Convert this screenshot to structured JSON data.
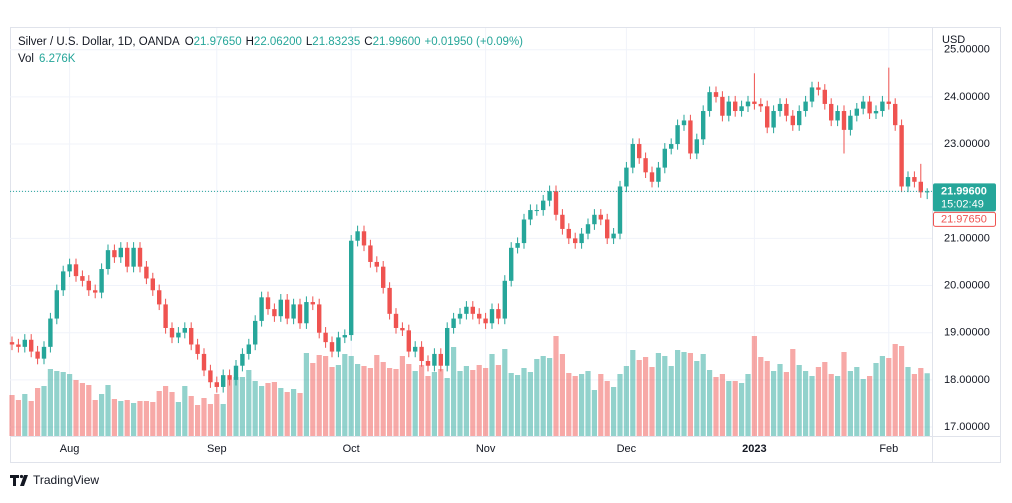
{
  "chart_data": {
    "type": "candlestick",
    "legend_header": {
      "symbol": "Silver / U.S. Dollar, 1D, OANDA",
      "items": [
        {
          "key": "O",
          "value": "21.97650"
        },
        {
          "key": "H",
          "value": "22.06200"
        },
        {
          "key": "L",
          "value": "21.83235"
        },
        {
          "key": "C",
          "value": "21.99600"
        }
      ],
      "change": "+0.01950 (+0.09%)",
      "volume_key": "Vol",
      "volume_value": "6.276K"
    },
    "currency": "USD",
    "price_labels": {
      "close": "21.99600",
      "countdown": "15:02:49",
      "open": "21.97650"
    },
    "branding": "TradingView",
    "up_color": "#26a69a",
    "down_color": "#ef5350",
    "ylim": [
      16.81,
      25.46
    ],
    "yticks": [
      {
        "value": 17,
        "label": "17.00000"
      },
      {
        "value": 18,
        "label": "18.00000"
      },
      {
        "value": 19,
        "label": "19.00000"
      },
      {
        "value": 20,
        "label": "20.00000"
      },
      {
        "value": 21,
        "label": "21.00000"
      },
      {
        "value": 22,
        "label": "22.00000"
      },
      {
        "value": 23,
        "label": "23.00000"
      },
      {
        "value": 24,
        "label": "24.00000"
      },
      {
        "value": 25,
        "label": "25.00000"
      }
    ],
    "grid": true,
    "volume_lim": [
      0,
      40.8
    ],
    "categories": [
      null,
      null,
      null,
      null,
      null,
      null,
      null,
      null,
      null,
      "Aug",
      null,
      null,
      null,
      null,
      null,
      null,
      null,
      null,
      null,
      null,
      null,
      null,
      null,
      null,
      null,
      null,
      null,
      null,
      null,
      null,
      null,
      null,
      "Sep",
      null,
      null,
      null,
      null,
      null,
      null,
      null,
      null,
      null,
      null,
      null,
      null,
      null,
      null,
      null,
      null,
      null,
      null,
      null,
      null,
      "Oct",
      null,
      null,
      null,
      null,
      null,
      null,
      null,
      null,
      null,
      null,
      null,
      null,
      null,
      null,
      null,
      null,
      null,
      null,
      null,
      null,
      "Nov",
      null,
      null,
      null,
      null,
      null,
      null,
      null,
      null,
      null,
      null,
      null,
      null,
      null,
      null,
      null,
      null,
      null,
      null,
      null,
      null,
      null,
      "Dec",
      null,
      null,
      null,
      null,
      null,
      null,
      null,
      null,
      null,
      null,
      null,
      null,
      null,
      null,
      null,
      null,
      null,
      null,
      null,
      "2023",
      null,
      null,
      null,
      null,
      null,
      null,
      null,
      null,
      null,
      null,
      null,
      null,
      null,
      null,
      null,
      null,
      null,
      null,
      null,
      null,
      "Feb",
      null,
      null,
      null,
      null,
      null,
      null
    ],
    "open": [
      18.8,
      18.75,
      18.7,
      18.85,
      18.6,
      18.45,
      18.7,
      19.3,
      19.9,
      20.3,
      20.45,
      20.2,
      20.1,
      19.9,
      19.85,
      20.35,
      20.75,
      20.6,
      20.8,
      20.4,
      20.8,
      20.4,
      20.15,
      19.9,
      19.6,
      19.1,
      18.9,
      19.0,
      19.1,
      18.75,
      18.55,
      18.2,
      17.95,
      17.85,
      18.1,
      18.0,
      18.3,
      18.55,
      18.75,
      19.25,
      19.75,
      19.5,
      19.35,
      19.7,
      19.3,
      19.6,
      19.2,
      19.65,
      19.6,
      19.0,
      18.8,
      18.6,
      18.9,
      18.95,
      20.95,
      21.15,
      20.85,
      20.5,
      20.4,
      19.95,
      19.4,
      19.1,
      19.05,
      18.6,
      18.7,
      18.4,
      18.3,
      18.55,
      18.3,
      19.1,
      19.3,
      19.4,
      19.55,
      19.4,
      19.3,
      19.2,
      19.5,
      19.3,
      20.1,
      20.8,
      20.9,
      21.4,
      21.6,
      21.6,
      21.8,
      22.0,
      21.5,
      21.2,
      21.0,
      20.9,
      21.1,
      21.3,
      21.5,
      21.4,
      21.0,
      21.1,
      22.1,
      22.5,
      23.0,
      22.7,
      22.4,
      22.2,
      22.5,
      22.9,
      23.0,
      23.4,
      23.5,
      22.8,
      23.1,
      23.7,
      24.1,
      24.0,
      23.6,
      23.9,
      23.7,
      23.8,
      23.9,
      23.85,
      23.8,
      23.35,
      23.7,
      23.85,
      23.6,
      23.4,
      23.7,
      23.9,
      24.2,
      24.15,
      23.85,
      23.5,
      23.7,
      23.3,
      23.6,
      23.75,
      23.9,
      23.65,
      23.7,
      23.9,
      23.85,
      23.4,
      22.1,
      22.3,
      22.2,
      21.9765
    ],
    "high": [
      18.92,
      18.87,
      18.97,
      18.97,
      18.72,
      18.82,
      19.42,
      20.02,
      20.42,
      20.57,
      20.57,
      20.32,
      20.22,
      20.02,
      20.47,
      20.87,
      20.87,
      20.92,
      20.92,
      20.92,
      20.92,
      20.52,
      20.27,
      20.02,
      19.72,
      19.22,
      19.12,
      19.22,
      19.22,
      18.87,
      18.67,
      18.32,
      18.07,
      18.22,
      18.22,
      18.42,
      18.67,
      18.87,
      19.37,
      19.87,
      19.87,
      19.62,
      19.82,
      19.82,
      19.72,
      19.72,
      19.77,
      19.77,
      19.72,
      19.12,
      18.92,
      19.02,
      19.07,
      21.07,
      21.27,
      21.27,
      20.97,
      20.62,
      20.52,
      20.07,
      19.52,
      19.22,
      19.17,
      18.82,
      18.82,
      18.52,
      18.67,
      18.67,
      19.22,
      19.42,
      19.52,
      19.67,
      19.67,
      19.52,
      19.42,
      19.62,
      19.62,
      20.22,
      20.92,
      21.02,
      21.52,
      21.72,
      21.72,
      21.92,
      22.12,
      22.12,
      21.62,
      21.32,
      21.12,
      21.22,
      21.42,
      21.62,
      21.62,
      21.52,
      21.22,
      22.22,
      22.62,
      23.12,
      23.12,
      22.82,
      22.52,
      22.62,
      23.02,
      23.12,
      23.52,
      23.62,
      23.62,
      23.22,
      23.82,
      24.22,
      24.22,
      24.12,
      24.02,
      24.02,
      23.92,
      24.02,
      24.5,
      23.97,
      23.92,
      23.82,
      23.97,
      23.97,
      23.72,
      23.82,
      24.02,
      24.32,
      24.32,
      24.27,
      23.97,
      23.82,
      23.82,
      23.72,
      23.87,
      24.02,
      24.02,
      23.82,
      24.02,
      24.62,
      23.97,
      23.52,
      22.42,
      22.42,
      22.58,
      22.062
    ],
    "low": [
      18.63,
      18.58,
      18.58,
      18.48,
      18.33,
      18.33,
      18.58,
      19.18,
      19.78,
      20.18,
      20.08,
      19.98,
      19.78,
      19.73,
      19.73,
      20.23,
      20.48,
      20.48,
      20.28,
      20.28,
      20.28,
      20.03,
      19.78,
      19.48,
      18.98,
      18.78,
      18.78,
      18.88,
      18.63,
      18.43,
      18.08,
      17.83,
      17.73,
      17.73,
      17.88,
      17.88,
      18.18,
      18.43,
      18.63,
      19.13,
      19.38,
      19.23,
      19.23,
      19.18,
      19.18,
      19.08,
      19.08,
      19.48,
      18.88,
      18.68,
      18.48,
      18.48,
      18.78,
      18.83,
      20.83,
      20.73,
      20.38,
      20.28,
      19.83,
      19.28,
      18.98,
      18.93,
      18.48,
      18.48,
      18.28,
      18.18,
      18.18,
      18.18,
      18.18,
      18.98,
      19.18,
      19.28,
      19.28,
      19.18,
      19.08,
      19.08,
      19.18,
      19.18,
      19.98,
      20.68,
      20.78,
      21.28,
      21.48,
      21.48,
      21.68,
      21.38,
      21.08,
      20.88,
      20.78,
      20.78,
      20.98,
      21.18,
      21.28,
      20.88,
      20.88,
      20.98,
      21.98,
      22.38,
      22.58,
      22.28,
      22.08,
      22.08,
      22.38,
      22.78,
      22.88,
      23.28,
      22.68,
      22.68,
      22.98,
      23.58,
      23.88,
      23.48,
      23.48,
      23.58,
      23.58,
      23.68,
      23.73,
      23.68,
      23.23,
      23.23,
      23.58,
      23.48,
      23.28,
      23.28,
      23.58,
      23.78,
      24.03,
      23.73,
      23.38,
      23.38,
      22.8,
      23.18,
      23.48,
      23.63,
      23.53,
      23.53,
      23.58,
      23.73,
      23.28,
      21.98,
      21.98,
      22.08,
      21.86,
      21.83235
    ],
    "close": [
      18.75,
      18.7,
      18.85,
      18.6,
      18.45,
      18.7,
      19.3,
      19.9,
      20.3,
      20.45,
      20.2,
      20.1,
      19.9,
      19.85,
      20.35,
      20.75,
      20.6,
      20.8,
      20.4,
      20.8,
      20.4,
      20.15,
      19.9,
      19.6,
      19.1,
      18.9,
      19.0,
      19.1,
      18.75,
      18.55,
      18.2,
      17.95,
      17.85,
      18.1,
      18.0,
      18.3,
      18.55,
      18.75,
      19.25,
      19.75,
      19.5,
      19.35,
      19.7,
      19.3,
      19.6,
      19.2,
      19.65,
      19.6,
      19.0,
      18.8,
      18.6,
      18.9,
      18.95,
      20.95,
      21.15,
      20.85,
      20.5,
      20.4,
      19.95,
      19.4,
      19.1,
      19.05,
      18.6,
      18.7,
      18.4,
      18.3,
      18.55,
      18.3,
      19.1,
      19.3,
      19.4,
      19.55,
      19.4,
      19.3,
      19.2,
      19.5,
      19.3,
      20.1,
      20.8,
      20.9,
      21.4,
      21.6,
      21.6,
      21.8,
      22.0,
      21.5,
      21.2,
      21.0,
      20.9,
      21.1,
      21.3,
      21.5,
      21.4,
      21.0,
      21.1,
      22.1,
      22.5,
      23.0,
      22.7,
      22.4,
      22.2,
      22.5,
      22.9,
      23.0,
      23.4,
      23.5,
      22.8,
      23.1,
      23.7,
      24.1,
      24.0,
      23.6,
      23.9,
      23.7,
      23.8,
      23.9,
      23.85,
      23.8,
      23.35,
      23.7,
      23.85,
      23.6,
      23.4,
      23.7,
      23.9,
      24.2,
      24.15,
      23.85,
      23.5,
      23.7,
      23.3,
      23.6,
      23.75,
      23.9,
      23.65,
      23.7,
      23.9,
      23.85,
      23.4,
      22.1,
      22.3,
      22.2,
      21.9765,
      21.996
    ],
    "volume": [
      4.1,
      3.6,
      4.2,
      3.5,
      4.8,
      5.0,
      6.7,
      6.5,
      6.4,
      6.2,
      5.6,
      5.3,
      5.1,
      3.6,
      4.2,
      5.1,
      3.7,
      3.5,
      3.6,
      3.3,
      3.5,
      3.5,
      3.4,
      4.5,
      5.0,
      4.4,
      3.4,
      5.0,
      4.0,
      3.1,
      3.8,
      3.2,
      4.2,
      3.2,
      5.6,
      5.9,
      5.9,
      6.6,
      5.5,
      5.0,
      5.3,
      5.4,
      4.8,
      4.4,
      4.7,
      4.3,
      8.3,
      7.3,
      8.1,
      8.0,
      6.9,
      7.1,
      8.2,
      8.0,
      7.2,
      7.0,
      6.8,
      8.1,
      7.4,
      6.8,
      6.7,
      8.0,
      7.2,
      6.5,
      7.1,
      6.0,
      6.4,
      6.7,
      5.8,
      8.9,
      6.5,
      7.0,
      6.6,
      7.1,
      6.8,
      8.2,
      7.1,
      8.7,
      6.3,
      6.1,
      6.8,
      6.4,
      7.7,
      8.0,
      7.8,
      10.0,
      8.2,
      6.3,
      6.0,
      6.2,
      6.5,
      4.6,
      6.2,
      5.5,
      4.9,
      6.2,
      7.0,
      8.6,
      7.6,
      7.9,
      6.9,
      8.3,
      8.0,
      7.0,
      8.6,
      8.4,
      8.3,
      7.5,
      8.2,
      6.6,
      5.9,
      6.2,
      5.5,
      5.5,
      5.3,
      6.2,
      10.0,
      7.9,
      7.5,
      6.5,
      7.2,
      6.4,
      8.7,
      7.1,
      6.5,
      6.0,
      6.9,
      7.4,
      6.2,
      6.0,
      8.4,
      6.5,
      6.9,
      5.7,
      6.0,
      7.3,
      8.0,
      7.8,
      9.2,
      9.0,
      6.9,
      6.2,
      6.8,
      6.276
    ]
  }
}
